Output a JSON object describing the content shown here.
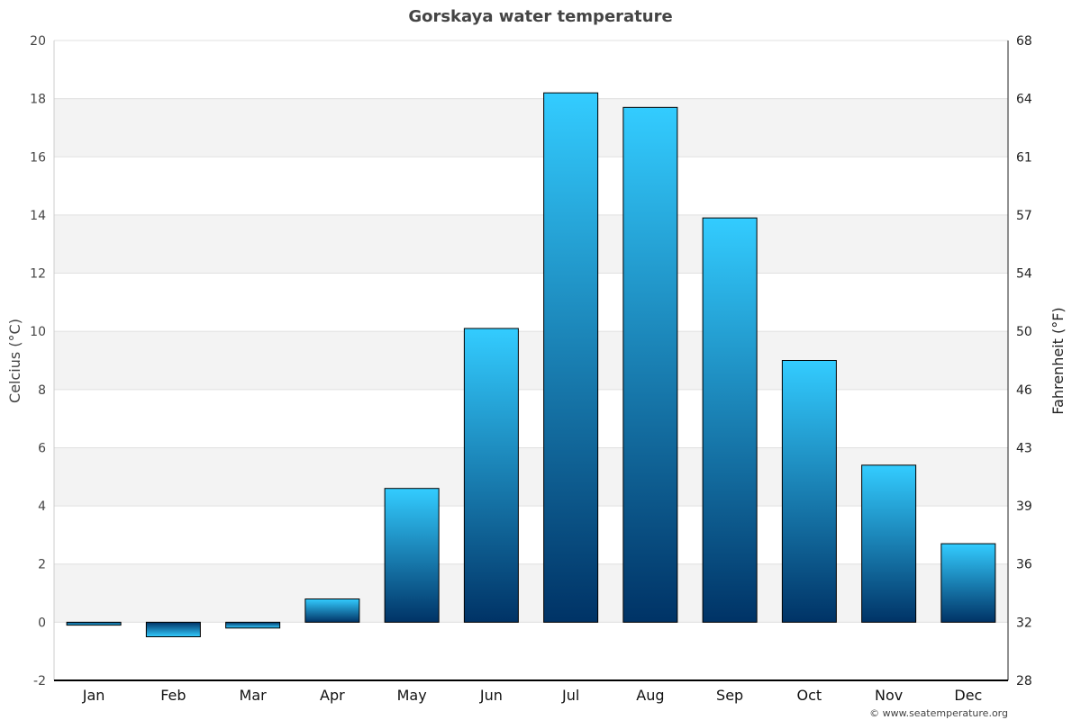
{
  "chart_data": {
    "type": "bar",
    "title": "Gorskaya water temperature",
    "categories": [
      "Jan",
      "Feb",
      "Mar",
      "Apr",
      "May",
      "Jun",
      "Jul",
      "Aug",
      "Sep",
      "Oct",
      "Nov",
      "Dec"
    ],
    "values": [
      -0.1,
      -0.5,
      -0.2,
      0.8,
      4.6,
      10.1,
      18.2,
      17.7,
      13.9,
      9.0,
      5.4,
      2.7
    ],
    "ylabel": "Celcius (°C)",
    "y2label": "Fahrenheit (°F)",
    "ylim": [
      -2,
      20
    ],
    "yticks": [
      -2,
      0,
      2,
      4,
      6,
      8,
      10,
      12,
      14,
      16,
      18,
      20
    ],
    "y2ticks": [
      "28",
      "32",
      "36",
      "39",
      "43",
      "46",
      "50",
      "54",
      "57",
      "61",
      "64",
      "68"
    ],
    "grid": true,
    "bar_color_top": "#33ccff",
    "bar_color_bottom": "#003366"
  },
  "credit": "© www.seatemperature.org"
}
